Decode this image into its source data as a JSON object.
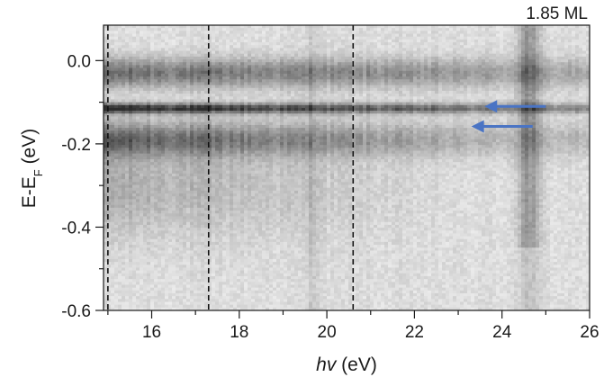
{
  "chart_data": {
    "type": "heatmap",
    "title": "1.85 ML",
    "xlabel_main": "hv",
    "xlabel_unit": " (eV)",
    "ylabel_main": "E-E",
    "ylabel_sub": "F",
    "ylabel_unit": " (eV)",
    "xlim": [
      14.9,
      26.0
    ],
    "ylim": [
      -0.6,
      0.085
    ],
    "x_ticks": [
      16,
      18,
      20,
      22,
      24,
      26
    ],
    "x_tick_labels": [
      "16",
      "18",
      "20",
      "22",
      "24",
      "26"
    ],
    "x_minor_ticks": [
      15,
      17,
      19,
      21,
      23,
      25
    ],
    "y_ticks": [
      0.0,
      -0.2,
      -0.4,
      -0.6
    ],
    "y_tick_labels": [
      "0.0",
      "-0.2",
      "-0.4",
      "-0.6"
    ],
    "y_minor_ticks": [
      -0.1,
      -0.3,
      -0.5
    ],
    "colormap": "grayscale (dark = high intensity)",
    "bands": [
      {
        "energy": -0.03,
        "width": 0.035,
        "strength": 0.55
      },
      {
        "energy": -0.115,
        "width": 0.012,
        "strength": 0.9
      },
      {
        "energy": -0.19,
        "width": 0.04,
        "strength": 0.55
      }
    ],
    "dashed_lines_x": [
      15.0,
      17.3,
      20.6
    ],
    "arrows": [
      {
        "y": -0.11,
        "x_start": 25.0,
        "x_end": 23.6,
        "color": "#4a74c4"
      },
      {
        "y": -0.158,
        "x_start": 24.7,
        "x_end": 23.3,
        "color": "#4a74c4"
      }
    ]
  }
}
